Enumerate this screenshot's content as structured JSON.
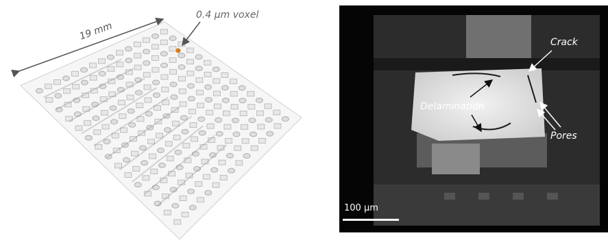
{
  "left": {
    "length_label": "19 mm",
    "voxel_label": "0.4 µm voxel"
  },
  "right": {
    "crack_label": "Crack",
    "delamination_label": "Delamination",
    "pores_label": "Pores",
    "scale_bar_label": "100 µm"
  }
}
